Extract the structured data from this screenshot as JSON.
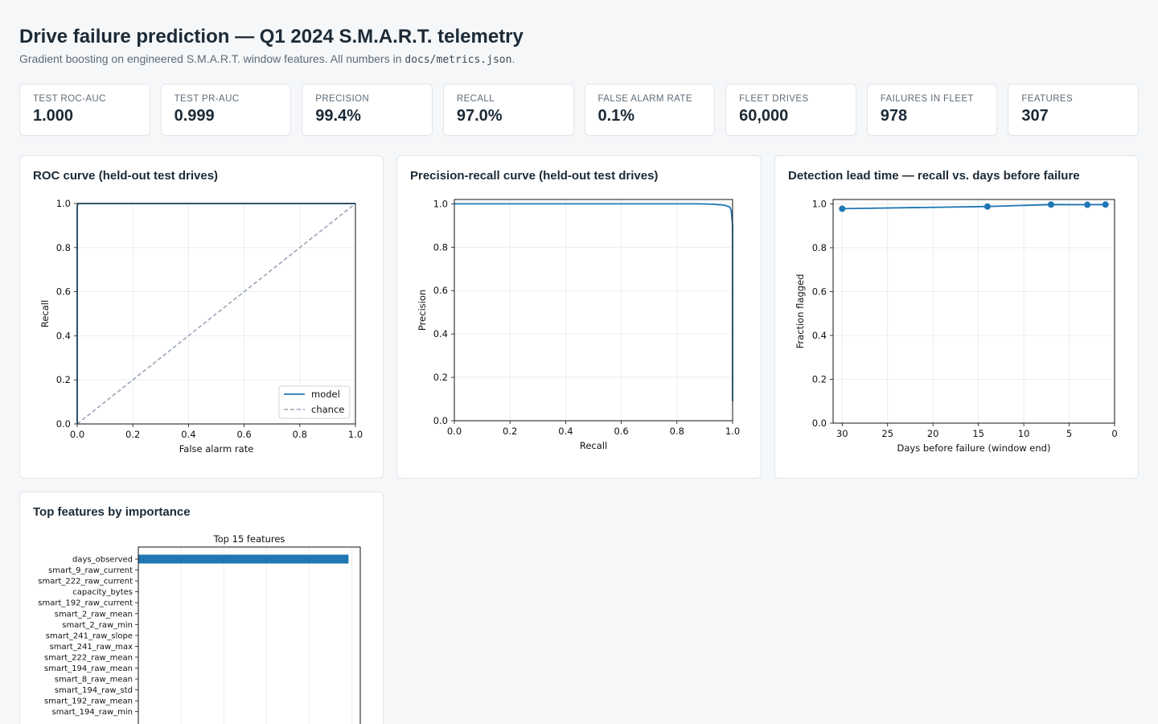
{
  "header": {
    "title": "Drive failure prediction — Q1 2024 S.M.A.R.T. telemetry",
    "subtitle_prefix": "Gradient boosting on engineered S.M.A.R.T. window features. All numbers in ",
    "subtitle_code": "docs/metrics.json",
    "subtitle_suffix": "."
  },
  "kpis": [
    {
      "label": "Test ROC-AUC",
      "value": "1.000"
    },
    {
      "label": "Test PR-AUC",
      "value": "0.999"
    },
    {
      "label": "Precision",
      "value": "99.4%"
    },
    {
      "label": "Recall",
      "value": "97.0%"
    },
    {
      "label": "False alarm rate",
      "value": "0.1%"
    },
    {
      "label": "Fleet drives",
      "value": "60,000"
    },
    {
      "label": "Failures in fleet",
      "value": "978"
    },
    {
      "label": "Features",
      "value": "307"
    }
  ],
  "cards": {
    "roc": "ROC curve (held-out test drives)",
    "pr": "Precision-recall curve (held-out test drives)",
    "lead": "Detection lead time — recall vs. days before failure",
    "feat": "Top features by importance"
  },
  "colors": {
    "series": "#1f77b4",
    "chance": "#9aa5b8",
    "grid": "#e6e9ec"
  },
  "chart_data": [
    {
      "type": "line",
      "xlabel": "False alarm rate",
      "ylabel": "Recall",
      "xlim": [
        0,
        1
      ],
      "ylim": [
        0,
        1
      ],
      "ticks": [
        0.0,
        0.2,
        0.4,
        0.6,
        0.8,
        1.0
      ],
      "grid": true,
      "legend": "bottom-right",
      "series": [
        {
          "name": "model",
          "x": [
            0,
            0.0,
            0.001,
            0.003,
            1.0
          ],
          "y": [
            0,
            0.97,
            0.99,
            1.0,
            1.0
          ]
        },
        {
          "name": "chance",
          "x": [
            0,
            1
          ],
          "y": [
            0,
            1
          ]
        }
      ]
    },
    {
      "type": "line",
      "xlabel": "Recall",
      "ylabel": "Precision",
      "xlim": [
        0,
        1
      ],
      "ylim": [
        0,
        1.02
      ],
      "ticks": [
        0.0,
        0.2,
        0.4,
        0.6,
        0.8,
        1.0
      ],
      "grid": true,
      "series": [
        {
          "x": [
            0.0,
            0.88,
            0.93,
            0.97,
            0.99,
            0.995,
            1.0,
            1.0,
            1.0
          ],
          "y": [
            1.0,
            1.0,
            0.998,
            0.994,
            0.985,
            0.97,
            0.9,
            0.3,
            0.09
          ]
        }
      ]
    },
    {
      "type": "line",
      "xlabel": "Days before failure (window end)",
      "ylabel": "Fraction flagged",
      "xlim": [
        31,
        0
      ],
      "ylim": [
        0,
        1.02
      ],
      "xticks": [
        30,
        25,
        20,
        15,
        10,
        5,
        0
      ],
      "yticks": [
        0.0,
        0.2,
        0.4,
        0.6,
        0.8,
        1.0
      ],
      "grid": true,
      "series": [
        {
          "x": [
            30,
            14,
            7,
            3,
            1
          ],
          "y": [
            0.978,
            0.988,
            0.997,
            0.996,
            0.997
          ]
        }
      ]
    },
    {
      "type": "bar",
      "orientation": "horizontal",
      "title": "Top 15 features",
      "categories": [
        "days_observed",
        "smart_9_raw_current",
        "smart_222_raw_current",
        "capacity_bytes",
        "smart_192_raw_current",
        "smart_2_raw_mean",
        "smart_2_raw_min",
        "smart_241_raw_slope",
        "smart_241_raw_max",
        "smart_222_raw_mean",
        "smart_194_raw_mean",
        "smart_8_raw_mean",
        "smart_194_raw_std",
        "smart_192_raw_mean",
        "smart_194_raw_min"
      ],
      "values": [
        0.985,
        0.0005,
        0.0004,
        0.0003,
        0.0003,
        0.0002,
        0.0002,
        0.0002,
        0.0002,
        0.0001,
        0.0001,
        0.0001,
        0.0001,
        0.0001,
        0.0001
      ],
      "xlim": [
        0,
        1.04
      ],
      "grid": true
    }
  ]
}
